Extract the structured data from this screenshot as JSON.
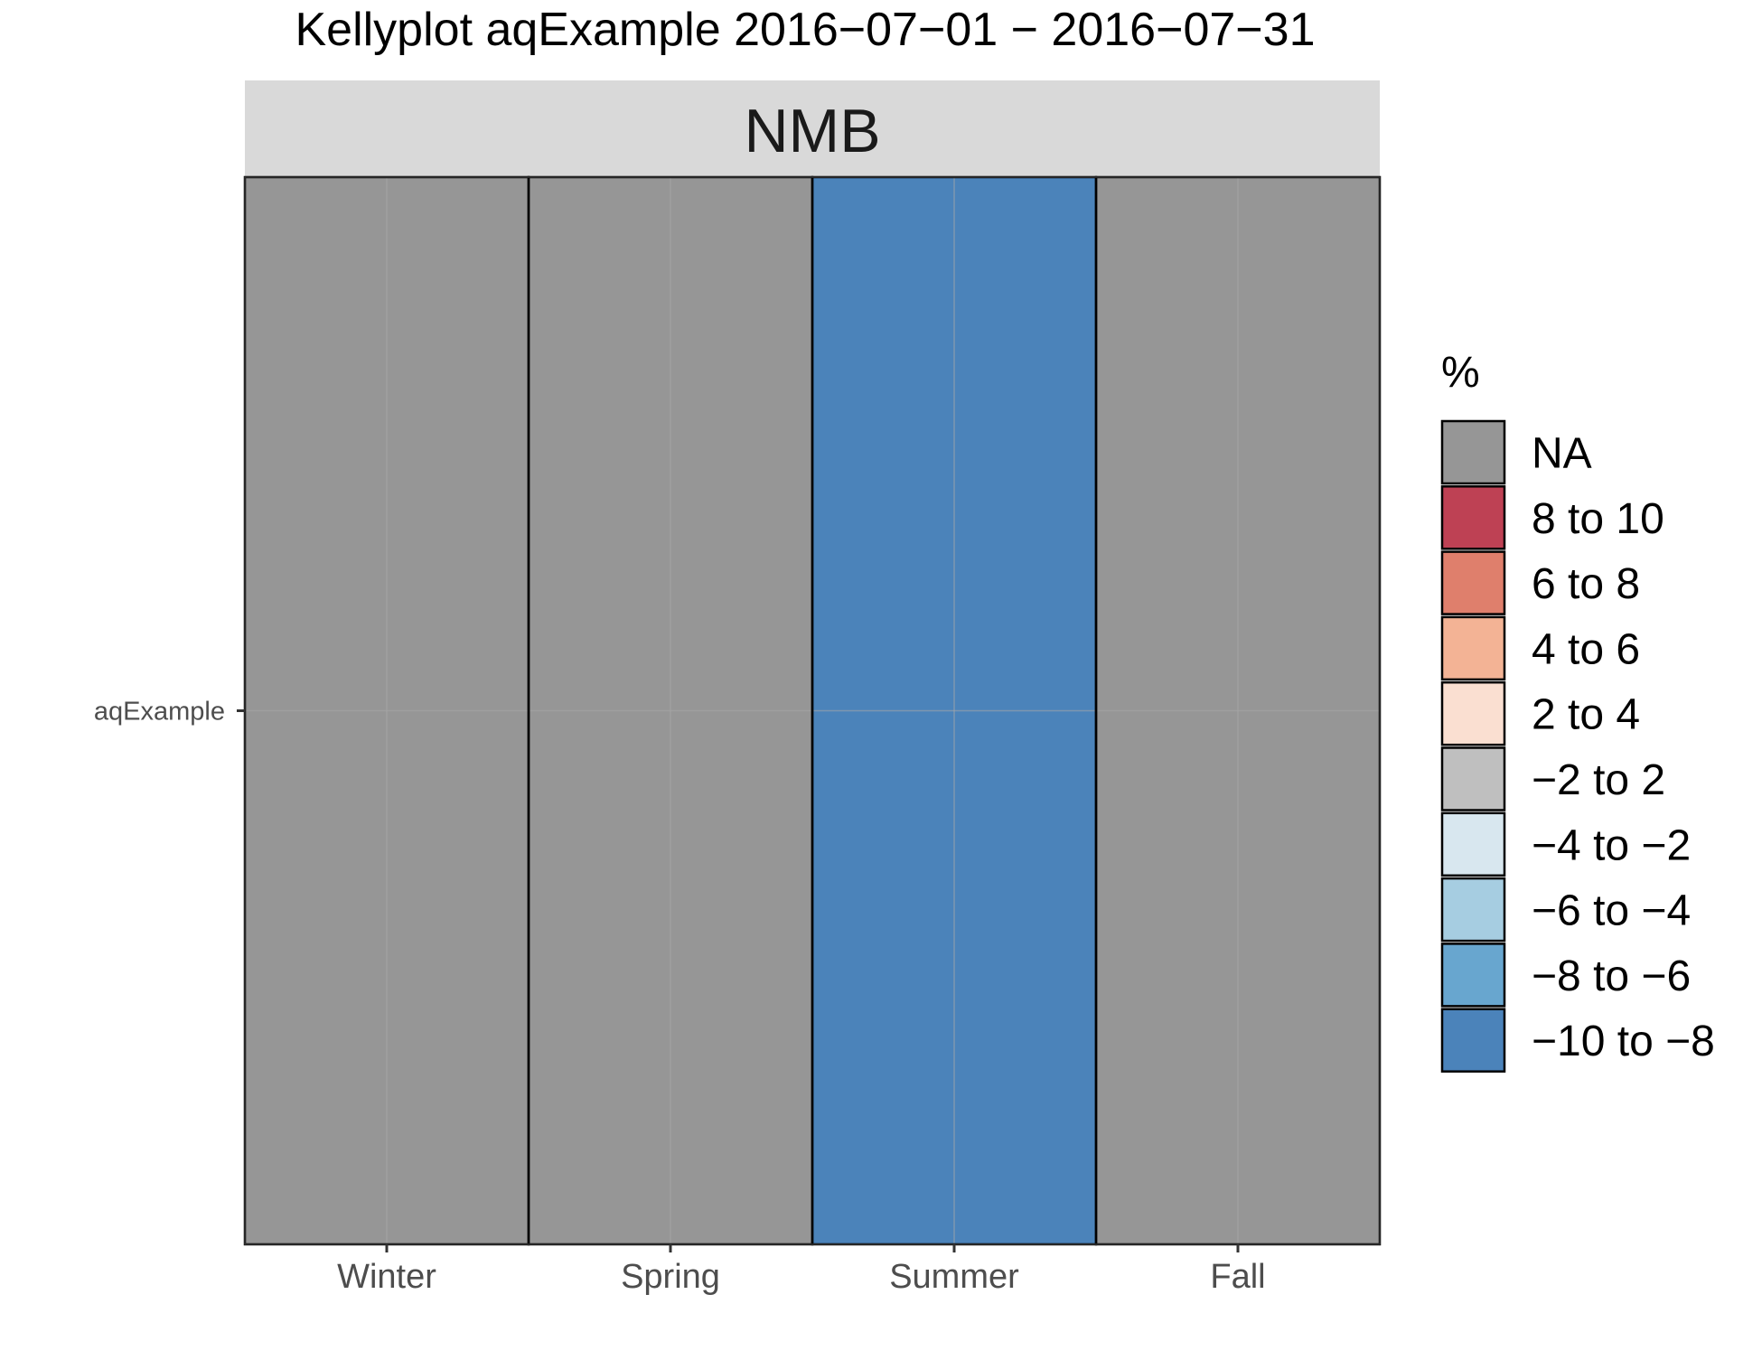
{
  "chart_data": {
    "type": "heatmap",
    "title": "Kellyplot aqExample 2016−07−01 − 2016−07−31",
    "facet": "NMB",
    "categories": [
      "Winter",
      "Spring",
      "Summer",
      "Fall"
    ],
    "y_categories": [
      "aqExample"
    ],
    "cells": [
      {
        "x": "Winter",
        "y": "aqExample",
        "bin": "NA"
      },
      {
        "x": "Spring",
        "y": "aqExample",
        "bin": "NA"
      },
      {
        "x": "Summer",
        "y": "aqExample",
        "bin": "−10 to −8"
      },
      {
        "x": "Fall",
        "y": "aqExample",
        "bin": "NA"
      }
    ],
    "legend": {
      "title": "%",
      "placement": "right",
      "items": [
        {
          "label": "NA",
          "color": "#969696"
        },
        {
          "label": "8 to 10",
          "color": "#BE4154"
        },
        {
          "label": "6 to 8",
          "color": "#DF7F6C"
        },
        {
          "label": "4 to 6",
          "color": "#F3B395"
        },
        {
          "label": "2 to 4",
          "color": "#FADFD1"
        },
        {
          "label": "−2 to 2",
          "color": "#BFBFBF"
        },
        {
          "label": "−4 to −2",
          "color": "#D8E7EF"
        },
        {
          "label": "−6 to −4",
          "color": "#A6CDE1"
        },
        {
          "label": "−8 to −6",
          "color": "#68A6CF"
        },
        {
          "label": "−10 to −8",
          "color": "#4B83BA"
        }
      ]
    },
    "colors": {
      "strip_bg": "#D9D9D9",
      "text": "#1A1A1A",
      "tick_text": "#4D4D4D",
      "grid": "#A8A8A8"
    },
    "grid": true
  }
}
